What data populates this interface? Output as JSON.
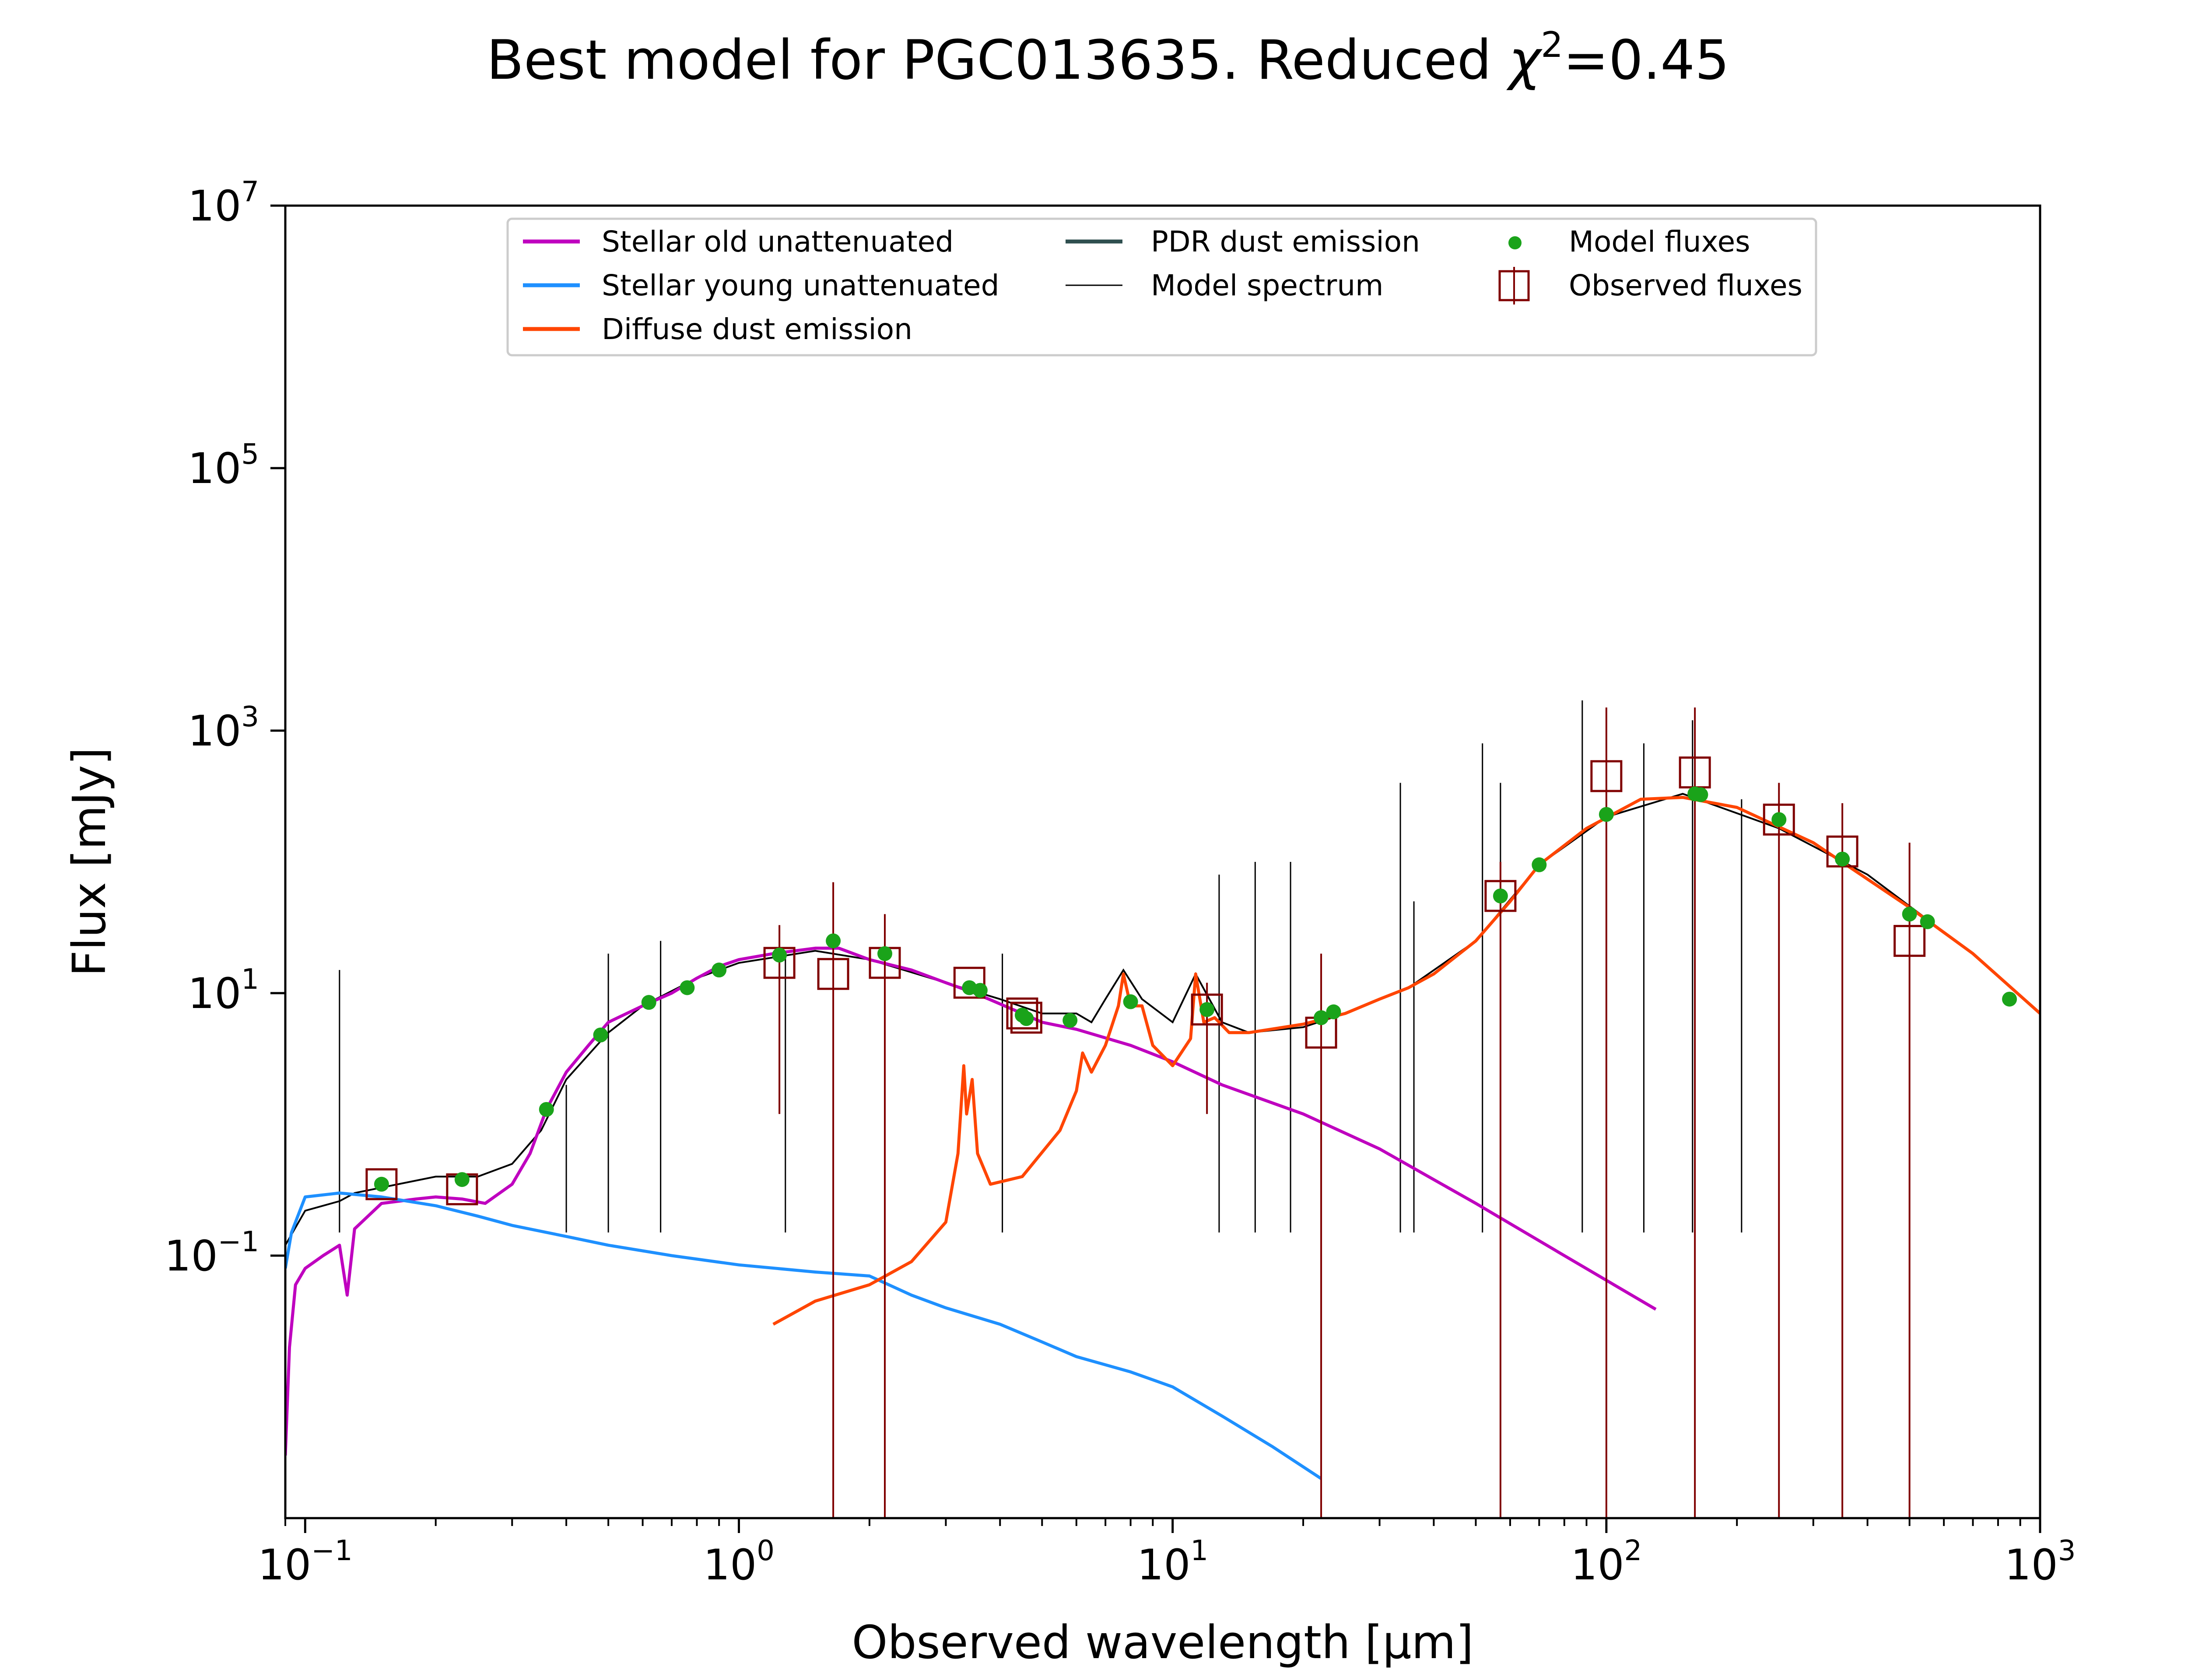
{
  "chart_data": {
    "type": "line",
    "title_prefix": "Best model for PGC013635. Reduced ",
    "title_symbol": "χ",
    "title_power": "2",
    "title_suffix": "=0.45",
    "xlabel": "Observed wavelength [μm]",
    "ylabel": "Flux [mJy]",
    "x_scale": "log",
    "y_scale": "log",
    "xlim": [
      0.09,
      1000
    ],
    "ylim": [
      0.001,
      10000000
    ],
    "x_ticks": [
      {
        "value": 0.1,
        "base": "10",
        "exp": "−1"
      },
      {
        "value": 1,
        "base": "10",
        "exp": "0"
      },
      {
        "value": 10,
        "base": "10",
        "exp": "1"
      },
      {
        "value": 100,
        "base": "10",
        "exp": "2"
      },
      {
        "value": 1000,
        "base": "10",
        "exp": "3"
      }
    ],
    "y_ticks": [
      {
        "value": 0.1,
        "base": "10",
        "exp": "−1"
      },
      {
        "value": 10,
        "base": "10",
        "exp": "1"
      },
      {
        "value": 1000,
        "base": "10",
        "exp": "3"
      },
      {
        "value": 100000,
        "base": "10",
        "exp": "5"
      },
      {
        "value": 10000000,
        "base": "10",
        "exp": "7"
      }
    ],
    "grid": false,
    "legend_position": "top-center",
    "legend": [
      {
        "label": "Stellar old unattenuated",
        "color": "#bf00bf",
        "kind": "line"
      },
      {
        "label": "Stellar young unattenuated",
        "color": "#1e90ff",
        "kind": "line"
      },
      {
        "label": "Diffuse dust emission",
        "color": "#ff4500",
        "kind": "line"
      },
      {
        "label": "PDR dust emission",
        "color": "#2f4f4f",
        "kind": "line"
      },
      {
        "label": "Model spectrum",
        "color": "#000000",
        "kind": "thin-line"
      },
      {
        "label": "Model fluxes",
        "color": "#1aa31a",
        "kind": "dot"
      },
      {
        "label": "Observed fluxes",
        "color": "#800000",
        "kind": "square"
      }
    ],
    "series": [
      {
        "name": "Stellar old unattenuated",
        "color": "#bf00bf",
        "points": [
          [
            0.09,
            0.003
          ],
          [
            0.092,
            0.02
          ],
          [
            0.095,
            0.06
          ],
          [
            0.1,
            0.08
          ],
          [
            0.11,
            0.1
          ],
          [
            0.12,
            0.12
          ],
          [
            0.125,
            0.05
          ],
          [
            0.13,
            0.16
          ],
          [
            0.15,
            0.25
          ],
          [
            0.18,
            0.27
          ],
          [
            0.2,
            0.28
          ],
          [
            0.23,
            0.27
          ],
          [
            0.26,
            0.25
          ],
          [
            0.3,
            0.35
          ],
          [
            0.33,
            0.6
          ],
          [
            0.36,
            1.3
          ],
          [
            0.4,
            2.5
          ],
          [
            0.45,
            4
          ],
          [
            0.5,
            6
          ],
          [
            0.6,
            8
          ],
          [
            0.7,
            10
          ],
          [
            0.8,
            13
          ],
          [
            0.9,
            16
          ],
          [
            1.0,
            18
          ],
          [
            1.2,
            20
          ],
          [
            1.5,
            22
          ],
          [
            1.7,
            22
          ],
          [
            2.0,
            18
          ],
          [
            2.5,
            15
          ],
          [
            3.0,
            12
          ],
          [
            3.5,
            10
          ],
          [
            4.5,
            7
          ],
          [
            5,
            6
          ],
          [
            6,
            5.3
          ],
          [
            8,
            4
          ],
          [
            10,
            3
          ],
          [
            13,
            2
          ],
          [
            20,
            1.2
          ],
          [
            30,
            0.65
          ],
          [
            50,
            0.25
          ],
          [
            80,
            0.1
          ],
          [
            130,
            0.039
          ]
        ]
      },
      {
        "name": "Stellar young unattenuated",
        "color": "#1e90ff",
        "points": [
          [
            0.09,
            0.08
          ],
          [
            0.093,
            0.15
          ],
          [
            0.1,
            0.28
          ],
          [
            0.12,
            0.3
          ],
          [
            0.15,
            0.28
          ],
          [
            0.2,
            0.24
          ],
          [
            0.25,
            0.2
          ],
          [
            0.3,
            0.17
          ],
          [
            0.4,
            0.14
          ],
          [
            0.5,
            0.12
          ],
          [
            0.7,
            0.1
          ],
          [
            1.0,
            0.085
          ],
          [
            1.5,
            0.075
          ],
          [
            2.0,
            0.07
          ],
          [
            2.5,
            0.05
          ],
          [
            3.0,
            0.04
          ],
          [
            4.0,
            0.03
          ],
          [
            5,
            0.022
          ],
          [
            6,
            0.017
          ],
          [
            8,
            0.013
          ],
          [
            10,
            0.01
          ],
          [
            13,
            0.006
          ],
          [
            17,
            0.0035
          ],
          [
            22,
            0.002
          ]
        ]
      },
      {
        "name": "Diffuse dust emission",
        "color": "#ff4500",
        "points": [
          [
            1.2,
            0.03
          ],
          [
            1.5,
            0.045
          ],
          [
            2.0,
            0.06
          ],
          [
            2.5,
            0.09
          ],
          [
            3.0,
            0.18
          ],
          [
            3.2,
            0.6
          ],
          [
            3.3,
            2.8
          ],
          [
            3.35,
            1.2
          ],
          [
            3.45,
            2.2
          ],
          [
            3.55,
            0.6
          ],
          [
            3.8,
            0.35
          ],
          [
            4.5,
            0.4
          ],
          [
            5.5,
            0.9
          ],
          [
            6.0,
            1.8
          ],
          [
            6.2,
            3.5
          ],
          [
            6.5,
            2.5
          ],
          [
            7.0,
            4
          ],
          [
            7.5,
            8
          ],
          [
            7.7,
            14
          ],
          [
            8.0,
            8
          ],
          [
            8.5,
            8
          ],
          [
            9.0,
            4
          ],
          [
            10,
            2.8
          ],
          [
            11,
            4.5
          ],
          [
            11.3,
            14
          ],
          [
            11.8,
            6
          ],
          [
            12.5,
            6.5
          ],
          [
            13.5,
            5
          ],
          [
            15,
            5
          ],
          [
            20,
            5.8
          ],
          [
            25,
            7
          ],
          [
            30,
            9
          ],
          [
            35,
            11
          ],
          [
            40,
            14
          ],
          [
            50,
            25
          ],
          [
            60,
            50
          ],
          [
            70,
            95
          ],
          [
            90,
            180
          ],
          [
            120,
            300
          ],
          [
            150,
            310
          ],
          [
            200,
            260
          ],
          [
            300,
            140
          ],
          [
            500,
            45
          ],
          [
            700,
            20
          ],
          [
            1000,
            7
          ]
        ]
      }
    ],
    "model_spectrum": {
      "name": "Model spectrum",
      "color": "#000000",
      "points": [
        [
          0.09,
          0.12
        ],
        [
          0.1,
          0.22
        ],
        [
          0.12,
          0.26
        ],
        [
          0.13,
          0.3
        ],
        [
          0.15,
          0.33
        ],
        [
          0.2,
          0.4
        ],
        [
          0.25,
          0.4
        ],
        [
          0.3,
          0.5
        ],
        [
          0.35,
          0.9
        ],
        [
          0.4,
          2.2
        ],
        [
          0.5,
          5
        ],
        [
          0.6,
          8
        ],
        [
          0.8,
          13
        ],
        [
          1.0,
          17
        ],
        [
          1.5,
          21
        ],
        [
          2.0,
          18
        ],
        [
          3.0,
          12
        ],
        [
          4.0,
          9
        ],
        [
          5.0,
          7
        ],
        [
          6.0,
          7
        ],
        [
          6.5,
          6
        ],
        [
          7.0,
          9
        ],
        [
          7.7,
          15
        ],
        [
          8.5,
          9
        ],
        [
          10,
          6
        ],
        [
          11.3,
          14
        ],
        [
          13,
          6
        ],
        [
          15,
          5
        ],
        [
          20,
          5.5
        ],
        [
          25,
          7
        ],
        [
          35,
          11
        ],
        [
          50,
          25
        ],
        [
          70,
          95
        ],
        [
          100,
          220
        ],
        [
          150,
          330
        ],
        [
          250,
          180
        ],
        [
          400,
          80
        ],
        [
          700,
          20
        ],
        [
          1000,
          7
        ]
      ],
      "lines": [
        [
          0.12,
          15
        ],
        [
          0.4,
          2
        ],
        [
          0.5,
          20
        ],
        [
          0.66,
          25
        ],
        [
          1.28,
          20
        ],
        [
          2.17,
          30
        ],
        [
          4.05,
          20
        ],
        [
          12.8,
          80
        ],
        [
          15.5,
          100
        ],
        [
          18.7,
          100
        ],
        [
          33.5,
          400
        ],
        [
          36,
          50
        ],
        [
          51.8,
          800
        ],
        [
          57,
          400
        ],
        [
          88,
          1700
        ],
        [
          122,
          800
        ],
        [
          158,
          1200
        ],
        [
          205,
          300
        ]
      ]
    },
    "model_fluxes": {
      "name": "Model fluxes",
      "color": "#1aa31a",
      "points": [
        [
          0.15,
          0.35
        ],
        [
          0.23,
          0.38
        ],
        [
          0.36,
          1.3
        ],
        [
          0.48,
          4.8
        ],
        [
          0.62,
          8.5
        ],
        [
          0.76,
          11
        ],
        [
          0.9,
          15
        ],
        [
          1.24,
          19.5
        ],
        [
          1.65,
          25
        ],
        [
          2.17,
          20
        ],
        [
          3.4,
          11
        ],
        [
          3.6,
          10.5
        ],
        [
          4.5,
          6.8
        ],
        [
          4.6,
          6.4
        ],
        [
          5.8,
          6.2
        ],
        [
          8.0,
          8.6
        ],
        [
          12,
          7.5
        ],
        [
          22,
          6.5
        ],
        [
          23.5,
          7.2
        ],
        [
          57,
          55
        ],
        [
          70,
          95
        ],
        [
          100,
          230
        ],
        [
          160,
          330
        ],
        [
          165,
          325
        ],
        [
          250,
          210
        ],
        [
          350,
          105
        ],
        [
          500,
          40
        ],
        [
          550,
          35
        ],
        [
          850,
          9
        ]
      ]
    },
    "observed_fluxes": {
      "name": "Observed fluxes",
      "color": "#800000",
      "points": [
        {
          "x": 0.15,
          "y": 0.35,
          "lo": null,
          "hi": null
        },
        {
          "x": 0.23,
          "y": 0.32,
          "lo": null,
          "hi": null
        },
        {
          "x": 1.24,
          "y": 17,
          "lo": 1.2,
          "hi": 33
        },
        {
          "x": 1.65,
          "y": 14,
          "lo": 0.001,
          "hi": 70
        },
        {
          "x": 2.17,
          "y": 17,
          "lo": 0.001,
          "hi": 40
        },
        {
          "x": 3.4,
          "y": 12,
          "lo": null,
          "hi": null
        },
        {
          "x": 4.5,
          "y": 7,
          "lo": null,
          "hi": null
        },
        {
          "x": 4.6,
          "y": 6.5,
          "lo": null,
          "hi": null
        },
        {
          "x": 12,
          "y": 7.5,
          "lo": 1.2,
          "hi": 12
        },
        {
          "x": 22,
          "y": 5,
          "lo": 0.001,
          "hi": 20
        },
        {
          "x": 57,
          "y": 55,
          "lo": 0.001,
          "hi": 100
        },
        {
          "x": 100,
          "y": 450,
          "lo": 0.001,
          "hi": 1500
        },
        {
          "x": 160,
          "y": 480,
          "lo": 0.001,
          "hi": 1500
        },
        {
          "x": 250,
          "y": 210,
          "lo": 0.001,
          "hi": 400
        },
        {
          "x": 350,
          "y": 120,
          "lo": 0.001,
          "hi": 280
        },
        {
          "x": 500,
          "y": 25,
          "lo": 0.001,
          "hi": 140
        }
      ]
    }
  }
}
